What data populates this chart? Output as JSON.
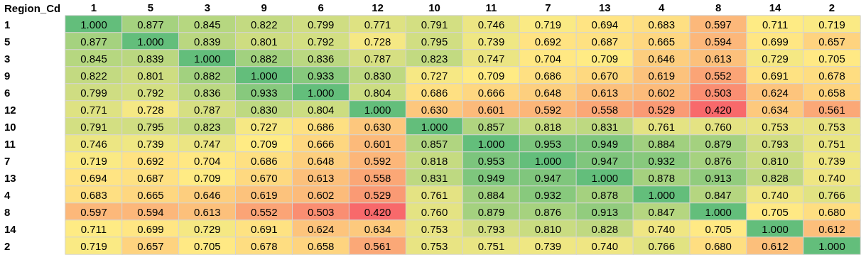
{
  "chart_data": {
    "type": "heatmap",
    "ylabel": "Region_Cd",
    "categories": [
      "1",
      "5",
      "3",
      "9",
      "6",
      "12",
      "10",
      "11",
      "7",
      "13",
      "4",
      "8",
      "14",
      "2"
    ],
    "y_categories": [
      "1",
      "5",
      "3",
      "9",
      "6",
      "12",
      "10",
      "11",
      "7",
      "13",
      "4",
      "8",
      "14",
      "2"
    ],
    "cells": [
      [
        1.0,
        0.877,
        0.845,
        0.822,
        0.799,
        0.771,
        0.791,
        0.746,
        0.719,
        0.694,
        0.683,
        0.597,
        0.711,
        0.719
      ],
      [
        0.877,
        1.0,
        0.839,
        0.801,
        0.792,
        0.728,
        0.795,
        0.739,
        0.692,
        0.687,
        0.665,
        0.594,
        0.699,
        0.657
      ],
      [
        0.845,
        0.839,
        1.0,
        0.882,
        0.836,
        0.787,
        0.823,
        0.747,
        0.704,
        0.709,
        0.646,
        0.613,
        0.729,
        0.705
      ],
      [
        0.822,
        0.801,
        0.882,
        1.0,
        0.933,
        0.83,
        0.727,
        0.709,
        0.686,
        0.67,
        0.619,
        0.552,
        0.691,
        0.678
      ],
      [
        0.799,
        0.792,
        0.836,
        0.933,
        1.0,
        0.804,
        0.686,
        0.666,
        0.648,
        0.613,
        0.602,
        0.503,
        0.624,
        0.658
      ],
      [
        0.771,
        0.728,
        0.787,
        0.83,
        0.804,
        1.0,
        0.63,
        0.601,
        0.592,
        0.558,
        0.529,
        0.42,
        0.634,
        0.561
      ],
      [
        0.791,
        0.795,
        0.823,
        0.727,
        0.686,
        0.63,
        1.0,
        0.857,
        0.818,
        0.831,
        0.761,
        0.76,
        0.753,
        0.753
      ],
      [
        0.746,
        0.739,
        0.747,
        0.709,
        0.666,
        0.601,
        0.857,
        1.0,
        0.953,
        0.949,
        0.884,
        0.879,
        0.793,
        0.751
      ],
      [
        0.719,
        0.692,
        0.704,
        0.686,
        0.648,
        0.592,
        0.818,
        0.953,
        1.0,
        0.947,
        0.932,
        0.876,
        0.81,
        0.739
      ],
      [
        0.694,
        0.687,
        0.709,
        0.67,
        0.613,
        0.558,
        0.831,
        0.949,
        0.947,
        1.0,
        0.878,
        0.913,
        0.828,
        0.74
      ],
      [
        0.683,
        0.665,
        0.646,
        0.619,
        0.602,
        0.529,
        0.761,
        0.884,
        0.932,
        0.878,
        1.0,
        0.847,
        0.74,
        0.766
      ],
      [
        0.597,
        0.594,
        0.613,
        0.552,
        0.503,
        0.42,
        0.76,
        0.879,
        0.876,
        0.913,
        0.847,
        1.0,
        0.705,
        0.68
      ],
      [
        0.711,
        0.699,
        0.729,
        0.691,
        0.624,
        0.634,
        0.753,
        0.793,
        0.81,
        0.828,
        0.74,
        0.705,
        1.0,
        0.612
      ],
      [
        0.719,
        0.657,
        0.705,
        0.678,
        0.658,
        0.561,
        0.753,
        0.751,
        0.739,
        0.74,
        0.766,
        0.68,
        0.612,
        1.0
      ]
    ],
    "cell_labels": [
      [
        "1.000",
        "0.877",
        "0.845",
        "0.822",
        "0.799",
        "0.771",
        "0.791",
        "0.746",
        "0.719",
        "0.694",
        "0.683",
        "0.597",
        "0.711",
        "0.719"
      ],
      [
        "0.877",
        "1.000",
        "0.839",
        "0.801",
        "0.792",
        "0.728",
        "0.795",
        "0.739",
        "0.692",
        "0.687",
        "0.665",
        "0.594",
        "0.699",
        "0.657"
      ],
      [
        "0.845",
        "0.839",
        "1.000",
        "0.882",
        "0.836",
        "0.787",
        "0.823",
        "0.747",
        "0.704",
        "0.709",
        "0.646",
        "0.613",
        "0.729",
        "0.705"
      ],
      [
        "0.822",
        "0.801",
        "0.882",
        "1.000",
        "0.933",
        "0.830",
        "0.727",
        "0.709",
        "0.686",
        "0.670",
        "0.619",
        "0.552",
        "0.691",
        "0.678"
      ],
      [
        "0.799",
        "0.792",
        "0.836",
        "0.933",
        "1.000",
        "0.804",
        "0.686",
        "0.666",
        "0.648",
        "0.613",
        "0.602",
        "0.503",
        "0.624",
        "0.658"
      ],
      [
        "0.771",
        "0.728",
        "0.787",
        "0.830",
        "0.804",
        "1.000",
        "0.630",
        "0.601",
        "0.592",
        "0.558",
        "0.529",
        "0.420",
        "0.634",
        "0.561"
      ],
      [
        "0.791",
        "0.795",
        "0.823",
        "0.727",
        "0.686",
        "0.630",
        "1.000",
        "0.857",
        "0.818",
        "0.831",
        "0.761",
        "0.760",
        "0.753",
        "0.753"
      ],
      [
        "0.746",
        "0.739",
        "0.747",
        "0.709",
        "0.666",
        "0.601",
        "0.857",
        "1.000",
        "0.953",
        "0.949",
        "0.884",
        "0.879",
        "0.793",
        "0.751"
      ],
      [
        "0.719",
        "0.692",
        "0.704",
        "0.686",
        "0.648",
        "0.592",
        "0.818",
        "0.953",
        "1.000",
        "0.947",
        "0.932",
        "0.876",
        "0.810",
        "0.739"
      ],
      [
        "0.694",
        "0.687",
        "0.709",
        "0.670",
        "0.613",
        "0.558",
        "0.831",
        "0.949",
        "0.947",
        "1.000",
        "0.878",
        "0.913",
        "0.828",
        "0.740"
      ],
      [
        "0.683",
        "0.665",
        "0.646",
        "0.619",
        "0.602",
        "0.529",
        "0.761",
        "0.884",
        "0.932",
        "0.878",
        "1.000",
        "0.847",
        "0.740",
        "0.766"
      ],
      [
        "0.597",
        "0.594",
        "0.613",
        "0.552",
        "0.503",
        "0.420",
        "0.760",
        "0.879",
        "0.876",
        "0.913",
        "0.847",
        "1.000",
        "0.705",
        "0.680"
      ],
      [
        "0.711",
        "0.699",
        "0.729",
        "0.691",
        "0.624",
        "0.634",
        "0.753",
        "0.793",
        "0.810",
        "0.828",
        "0.740",
        "0.705",
        "1.000",
        "0.612"
      ],
      [
        "0.719",
        "0.657",
        "0.705",
        "0.678",
        "0.658",
        "0.561",
        "0.753",
        "0.751",
        "0.739",
        "0.740",
        "0.766",
        "0.680",
        "0.612",
        "1.000"
      ]
    ]
  }
}
